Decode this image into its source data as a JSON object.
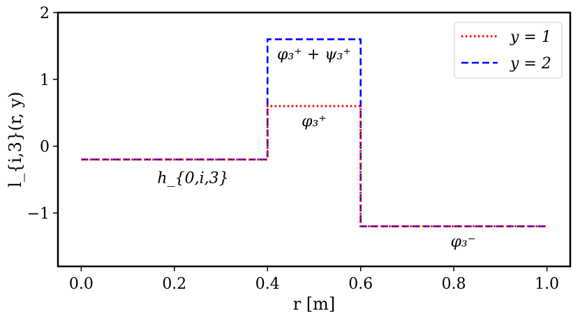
{
  "chart_data": {
    "type": "line",
    "xlabel": "r [m]",
    "ylabel": "l_{i,3}(r, y)",
    "xlim": [
      -0.05,
      1.05
    ],
    "ylim": [
      -1.8,
      2.0
    ],
    "xticks": [
      0.0,
      0.2,
      0.4,
      0.6,
      0.8,
      1.0
    ],
    "xtick_labels": [
      "0.0",
      "0.2",
      "0.4",
      "0.6",
      "0.8",
      "1.0"
    ],
    "yticks": [
      -1,
      0,
      1,
      2
    ],
    "ytick_labels": [
      "−1",
      "0",
      "1",
      "2"
    ],
    "grid": false,
    "legend_position": "top-right",
    "series": [
      {
        "name": "y = 1",
        "color": "#ff0000",
        "style": "dotted",
        "x": [
          0.0,
          0.4,
          0.4,
          0.6,
          0.6,
          1.0
        ],
        "y": [
          -0.2,
          -0.2,
          0.6,
          0.6,
          -1.2,
          -1.2
        ]
      },
      {
        "name": "y = 2",
        "color": "#0000ff",
        "style": "dashed",
        "x": [
          0.0,
          0.4,
          0.4,
          0.6,
          0.6,
          1.0
        ],
        "y": [
          -0.2,
          -0.2,
          1.6,
          1.6,
          -1.2,
          -1.2
        ]
      }
    ],
    "annotations": [
      {
        "text": "h_{0,i,3}",
        "x": 0.24,
        "y": -0.55
      },
      {
        "text": "φ₃⁺ + ψ₃⁺",
        "x": 0.5,
        "y": 1.3
      },
      {
        "text": "φ₃⁺",
        "x": 0.5,
        "y": 0.3
      },
      {
        "text": "φ₃⁻",
        "x": 0.82,
        "y": -1.5
      }
    ]
  }
}
